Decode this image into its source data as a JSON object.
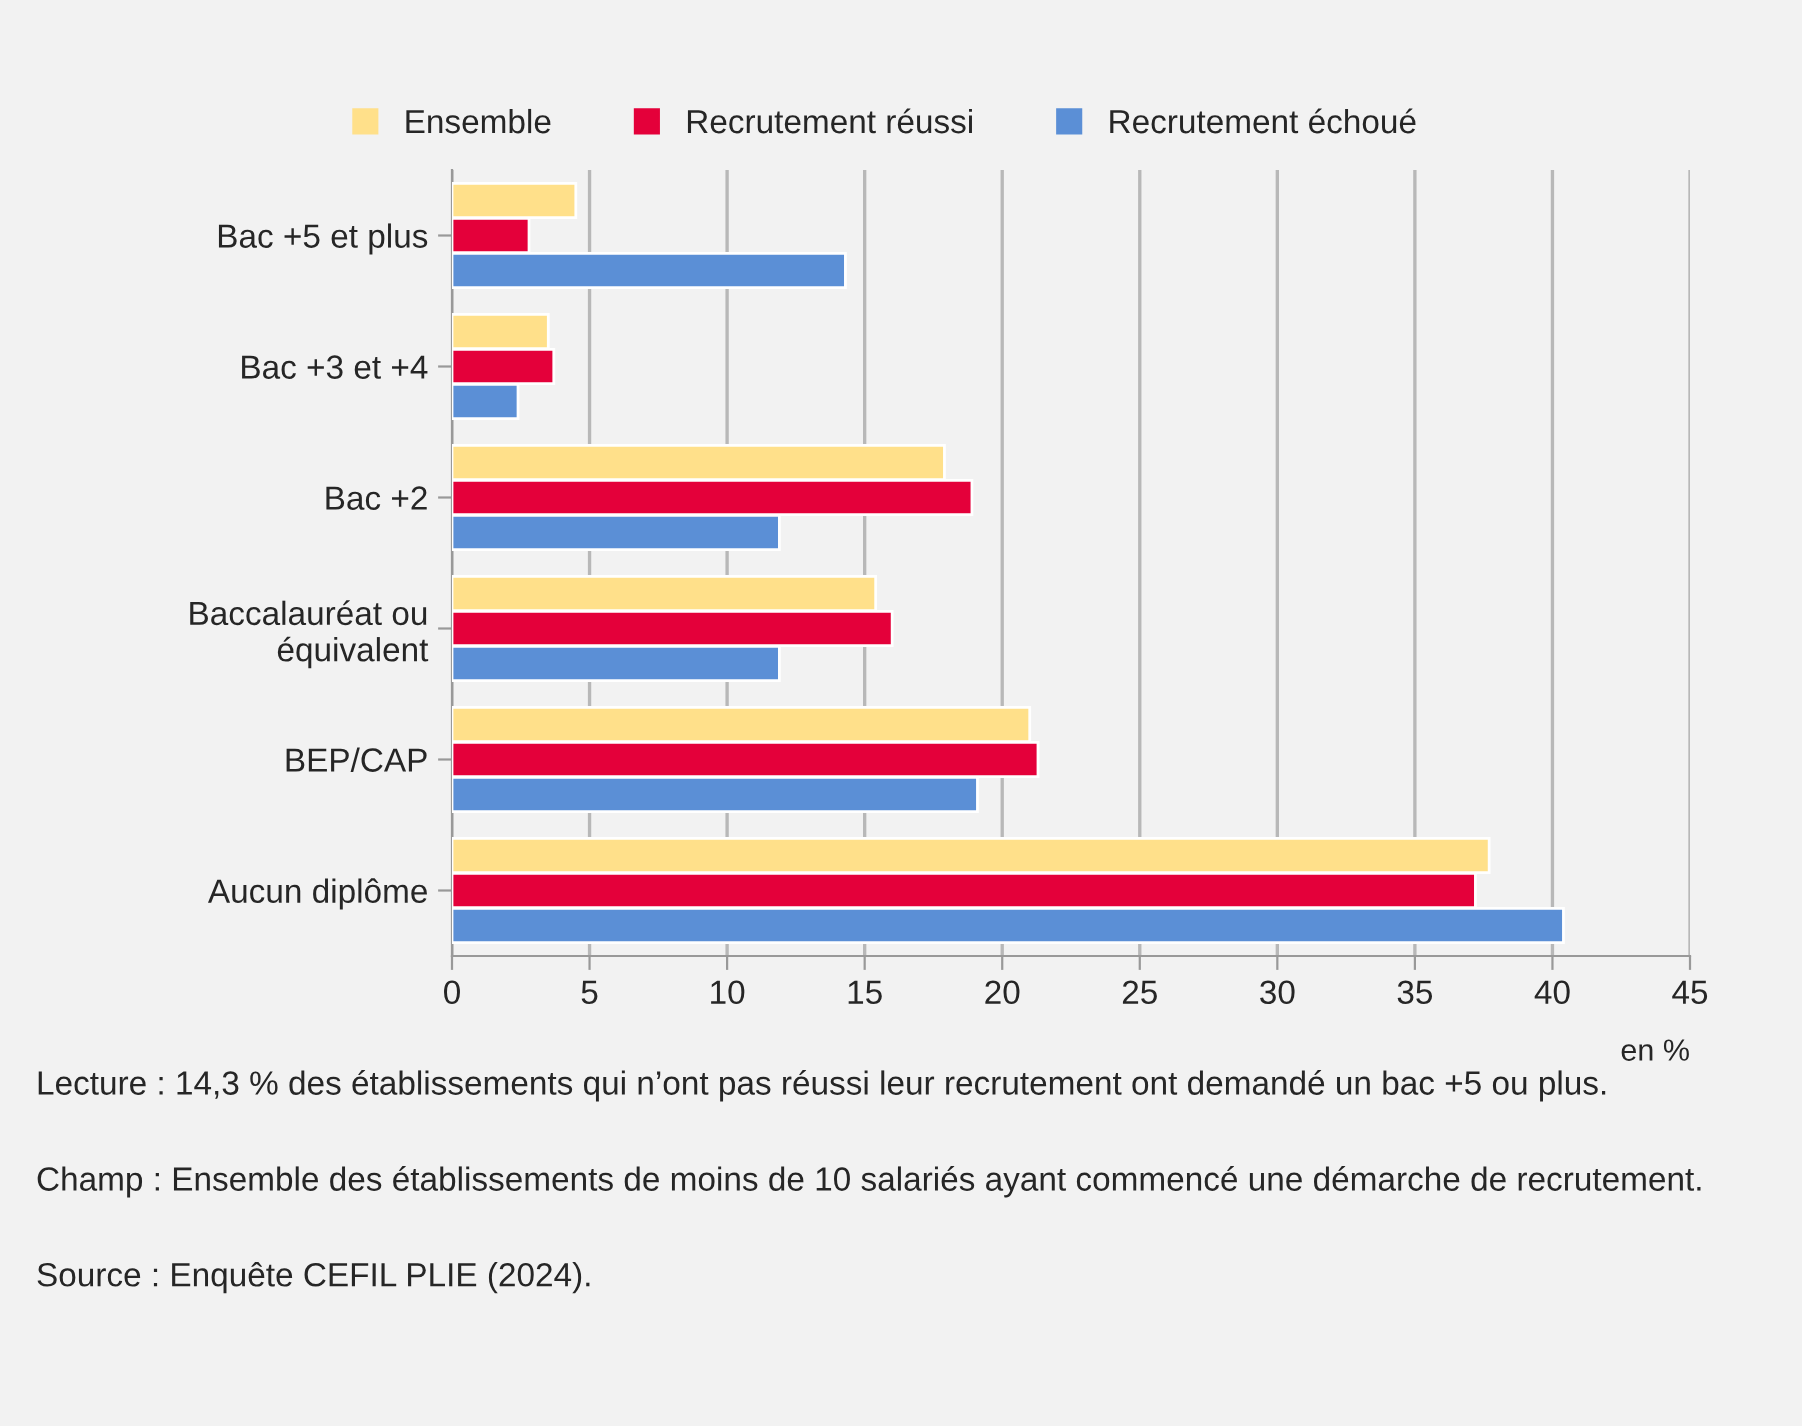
{
  "chart_data": {
    "type": "bar",
    "orientation": "horizontal",
    "categories": [
      "Bac +5 et plus",
      "Bac +3 et +4",
      "Bac +2",
      "Baccalauréat ou\néquivalent",
      "BEP/CAP",
      "Aucun diplôme"
    ],
    "series": [
      {
        "name": "Ensemble",
        "color": "#ffe08a",
        "values": [
          4.5,
          3.5,
          17.9,
          15.4,
          21.0,
          37.7
        ]
      },
      {
        "name": "Recrutement réussi",
        "color": "#e4003a",
        "values": [
          2.8,
          3.7,
          18.9,
          16.0,
          21.3,
          37.2
        ]
      },
      {
        "name": "Recrutement échoué",
        "color": "#5b8fd6",
        "values": [
          14.3,
          2.4,
          11.9,
          11.9,
          19.1,
          40.4
        ]
      }
    ],
    "xlim": [
      0,
      45
    ],
    "xticks": [
      0,
      5,
      10,
      15,
      20,
      25,
      30,
      35,
      40,
      45
    ],
    "xlabel": "en %",
    "grid": "x",
    "legend": "top",
    "annotations": [
      "Lecture : 14,3 % des établissements qui n’ont pas réussi leur recrutement ont demandé un bac +5 ou plus.",
      "Champ : Ensemble des établissements de moins de 10 salariés ayant commencé une démarche de recrutement.",
      "Source : Enquête CEFIL PLIE (2024)."
    ]
  }
}
